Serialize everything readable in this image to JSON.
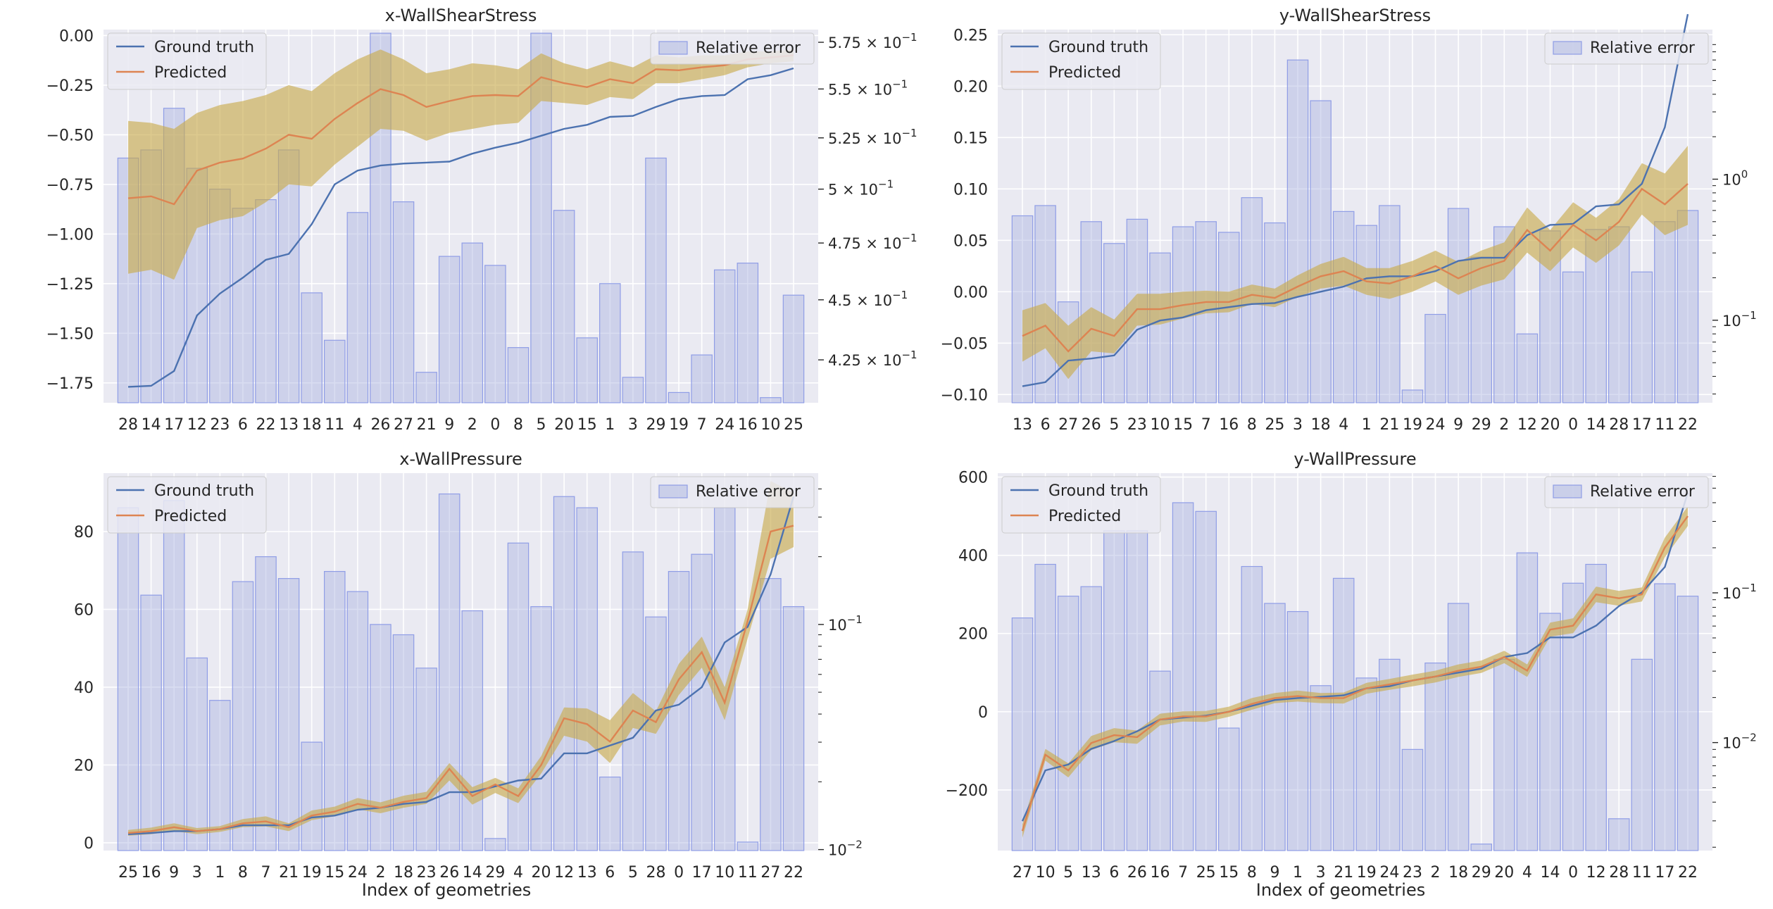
{
  "figure": {
    "xlabel": "Index of geometries"
  },
  "legend_labels": {
    "ground_truth": "Ground truth",
    "predicted": "Predicted",
    "relative_error": "Relative error"
  },
  "colors": {
    "ground_truth": "#4c72b0",
    "predicted": "#dd8452",
    "band": "#c8a949",
    "bars": "#aab4e0",
    "bar_edge": "#8f9de6",
    "panel_bg": "#eaeaf2"
  },
  "chart_data": [
    {
      "type": "bar",
      "title": "x-WallShearStress",
      "xlabel": "",
      "categories": [
        "28",
        "14",
        "17",
        "12",
        "23",
        "6",
        "22",
        "13",
        "18",
        "11",
        "4",
        "26",
        "27",
        "21",
        "9",
        "2",
        "0",
        "8",
        "5",
        "20",
        "15",
        "1",
        "3",
        "29",
        "19",
        "7",
        "24",
        "16",
        "10",
        "25"
      ],
      "ylim": [
        -1.85,
        0.03
      ],
      "yticks": [
        -1.75,
        -1.5,
        -1.25,
        -1.0,
        -0.75,
        -0.5,
        -0.25,
        0.0
      ],
      "ytick_labels": [
        "−1.75",
        "−1.50",
        "−1.25",
        "−1.00",
        "−0.75",
        "−0.50",
        "−0.25",
        "0.00"
      ],
      "y2_scale": "log",
      "y2lim": [
        0.408,
        0.582
      ],
      "y2_ticks": [
        0.425,
        0.45,
        0.475,
        0.5,
        0.525,
        0.55,
        0.575
      ],
      "y2_tick_labels": [
        {
          "mantissa": "4.25 × 10",
          "exp": "−1"
        },
        {
          "mantissa": "4.5 × 10",
          "exp": "−1"
        },
        {
          "mantissa": "4.75 × 10",
          "exp": "−1"
        },
        {
          "mantissa": "5 × 10",
          "exp": "−1"
        },
        {
          "mantissa": "5.25 × 10",
          "exp": "−1"
        },
        {
          "mantissa": "5.5 × 10",
          "exp": "−1"
        },
        {
          "mantissa": "5.75 × 10",
          "exp": "−1"
        }
      ],
      "series": [
        {
          "name": "Ground truth",
          "values": [
            -1.77,
            -1.765,
            -1.69,
            -1.41,
            -1.3,
            -1.22,
            -1.13,
            -1.1,
            -0.95,
            -0.75,
            -0.68,
            -0.655,
            -0.645,
            -0.64,
            -0.635,
            -0.595,
            -0.565,
            -0.54,
            -0.505,
            -0.47,
            -0.45,
            -0.41,
            -0.405,
            -0.36,
            -0.32,
            -0.305,
            -0.3,
            -0.22,
            -0.2,
            -0.165
          ]
        },
        {
          "name": "Predicted",
          "values": [
            -0.82,
            -0.81,
            -0.85,
            -0.68,
            -0.64,
            -0.62,
            -0.57,
            -0.5,
            -0.52,
            -0.42,
            -0.34,
            -0.27,
            -0.3,
            -0.36,
            -0.33,
            -0.305,
            -0.3,
            -0.305,
            -0.21,
            -0.24,
            -0.26,
            -0.22,
            -0.24,
            -0.17,
            -0.175,
            -0.16,
            -0.15,
            -0.12,
            -0.11,
            -0.1
          ]
        },
        {
          "name": "Relative error",
          "values": [
            0.515,
            0.519,
            0.54,
            0.51,
            0.5,
            0.491,
            0.495,
            0.519,
            0.453,
            0.433,
            0.489,
            0.58,
            0.494,
            0.42,
            0.469,
            0.475,
            0.465,
            0.43,
            0.58,
            0.49,
            0.434,
            0.457,
            0.418,
            0.515,
            0.412,
            0.427,
            0.463,
            0.466,
            0.41,
            0.452
          ]
        }
      ],
      "band_lower": [
        -1.2,
        -1.18,
        -1.23,
        -0.97,
        -0.93,
        -0.91,
        -0.84,
        -0.75,
        -0.76,
        -0.65,
        -0.56,
        -0.47,
        -0.48,
        -0.53,
        -0.49,
        -0.47,
        -0.45,
        -0.44,
        -0.33,
        -0.34,
        -0.35,
        -0.31,
        -0.32,
        -0.24,
        -0.24,
        -0.22,
        -0.2,
        -0.16,
        -0.14,
        -0.13
      ],
      "band_upper": [
        -0.43,
        -0.44,
        -0.47,
        -0.39,
        -0.35,
        -0.33,
        -0.3,
        -0.25,
        -0.28,
        -0.19,
        -0.12,
        -0.07,
        -0.12,
        -0.19,
        -0.17,
        -0.14,
        -0.15,
        -0.17,
        -0.09,
        -0.14,
        -0.17,
        -0.13,
        -0.16,
        -0.1,
        -0.11,
        -0.1,
        -0.1,
        -0.08,
        -0.08,
        -0.07
      ]
    },
    {
      "type": "bar",
      "title": "y-WallShearStress",
      "xlabel": "",
      "categories": [
        "13",
        "6",
        "27",
        "26",
        "5",
        "23",
        "10",
        "15",
        "7",
        "16",
        "8",
        "25",
        "3",
        "18",
        "4",
        "1",
        "21",
        "19",
        "24",
        "9",
        "29",
        "2",
        "12",
        "20",
        "0",
        "14",
        "28",
        "17",
        "11",
        "22"
      ],
      "ylim": [
        -0.108,
        0.255
      ],
      "yticks": [
        -0.1,
        -0.05,
        0.0,
        0.05,
        0.1,
        0.15,
        0.2,
        0.25
      ],
      "ytick_labels": [
        "−0.10",
        "−0.05",
        "0.00",
        "0.05",
        "0.10",
        "0.15",
        "0.20",
        "0.25"
      ],
      "y2_scale": "log",
      "y2lim": [
        0.026,
        11.5
      ],
      "y2_ticks": [
        0.1,
        1.0
      ],
      "y2_tick_labels": [
        {
          "mantissa": "10",
          "exp": "−1"
        },
        {
          "mantissa": "10",
          "exp": "0"
        }
      ],
      "series": [
        {
          "name": "Ground truth",
          "values": [
            -0.092,
            -0.088,
            -0.067,
            -0.065,
            -0.062,
            -0.037,
            -0.028,
            -0.025,
            -0.018,
            -0.015,
            -0.012,
            -0.011,
            -0.005,
            0.0,
            0.005,
            0.013,
            0.015,
            0.015,
            0.02,
            0.03,
            0.033,
            0.033,
            0.055,
            0.065,
            0.066,
            0.083,
            0.085,
            0.105,
            0.16,
            0.27
          ]
        },
        {
          "name": "Predicted",
          "values": [
            -0.043,
            -0.033,
            -0.058,
            -0.036,
            -0.043,
            -0.017,
            -0.017,
            -0.013,
            -0.01,
            -0.01,
            -0.003,
            -0.006,
            0.005,
            0.015,
            0.02,
            0.01,
            0.008,
            0.015,
            0.025,
            0.013,
            0.023,
            0.03,
            0.06,
            0.04,
            0.065,
            0.05,
            0.068,
            0.1,
            0.085,
            0.105
          ]
        },
        {
          "name": "Relative error",
          "values": [
            0.55,
            0.65,
            0.135,
            0.5,
            0.35,
            0.52,
            0.3,
            0.46,
            0.5,
            0.42,
            0.74,
            0.49,
            7.0,
            3.6,
            0.59,
            0.47,
            0.65,
            0.032,
            0.11,
            0.62,
            0.28,
            0.46,
            0.08,
            0.43,
            0.22,
            0.44,
            0.46,
            0.22,
            0.5,
            0.6
          ]
        }
      ],
      "band_lower": [
        -0.068,
        -0.055,
        -0.085,
        -0.058,
        -0.06,
        -0.033,
        -0.032,
        -0.026,
        -0.021,
        -0.02,
        -0.012,
        -0.015,
        -0.005,
        0.003,
        0.006,
        -0.003,
        -0.007,
        0.0,
        0.01,
        -0.003,
        0.006,
        0.012,
        0.038,
        0.02,
        0.043,
        0.028,
        0.045,
        0.075,
        0.055,
        0.065
      ],
      "band_upper": [
        -0.018,
        -0.011,
        -0.033,
        -0.015,
        -0.027,
        -0.002,
        -0.002,
        0.0,
        0.001,
        0.0,
        0.007,
        0.003,
        0.016,
        0.027,
        0.034,
        0.023,
        0.023,
        0.03,
        0.04,
        0.029,
        0.04,
        0.048,
        0.082,
        0.06,
        0.087,
        0.072,
        0.09,
        0.125,
        0.115,
        0.142
      ]
    },
    {
      "type": "bar",
      "title": "x-WallPressure",
      "xlabel": "Index of geometries",
      "categories": [
        "25",
        "16",
        "9",
        "3",
        "1",
        "8",
        "7",
        "21",
        "19",
        "15",
        "24",
        "2",
        "18",
        "23",
        "26",
        "14",
        "29",
        "4",
        "20",
        "12",
        "13",
        "6",
        "5",
        "28",
        "0",
        "17",
        "10",
        "11",
        "27",
        "22"
      ],
      "ylim": [
        -2.0,
        95.0
      ],
      "yticks": [
        0,
        20,
        40,
        60,
        80
      ],
      "ytick_labels": [
        "0",
        "20",
        "40",
        "60",
        "80"
      ],
      "y2_scale": "log",
      "y2lim": [
        0.0099,
        0.47
      ],
      "y2_ticks": [
        0.01,
        0.1
      ],
      "y2_tick_labels": [
        {
          "mantissa": "10",
          "exp": "−2"
        },
        {
          "mantissa": "10",
          "exp": "−1"
        }
      ],
      "series": [
        {
          "name": "Ground truth",
          "values": [
            2.2,
            2.5,
            3.0,
            3.0,
            3.5,
            4.5,
            4.5,
            4.5,
            6.5,
            7.0,
            8.5,
            9.0,
            10.0,
            10.5,
            13.0,
            13.0,
            14.5,
            16.0,
            16.5,
            23.0,
            23.0,
            25.0,
            27.0,
            34.0,
            35.5,
            40.0,
            51.5,
            55.5,
            69.0,
            89.0
          ]
        },
        {
          "name": "Predicted",
          "values": [
            2.5,
            3.0,
            4.0,
            3.0,
            3.5,
            5.0,
            5.5,
            4.0,
            7.0,
            8.0,
            10.0,
            9.0,
            10.5,
            11.5,
            19.0,
            12.0,
            15.0,
            12.0,
            20.0,
            32.0,
            30.5,
            26.0,
            34.0,
            31.0,
            42.0,
            49.0,
            36.0,
            57.0,
            80.0,
            81.5
          ]
        },
        {
          "name": "Relative error",
          "values": [
            0.33,
            0.135,
            0.355,
            0.071,
            0.046,
            0.155,
            0.2,
            0.16,
            0.03,
            0.172,
            0.14,
            0.1,
            0.09,
            0.064,
            0.38,
            0.115,
            0.0112,
            0.23,
            0.12,
            0.37,
            0.33,
            0.021,
            0.21,
            0.108,
            0.172,
            0.205,
            0.33,
            0.0108,
            0.16,
            0.12
          ]
        }
      ],
      "band_lower": [
        1.8,
        2.2,
        3.0,
        2.2,
        2.8,
        4.0,
        4.2,
        3.0,
        5.8,
        6.8,
        8.6,
        7.6,
        9.0,
        10.0,
        16.0,
        9.8,
        12.8,
        10.2,
        17.8,
        27.5,
        26.0,
        20.5,
        29.5,
        28.0,
        38.0,
        45.0,
        31.5,
        52.5,
        73.0,
        76.0
      ],
      "band_upper": [
        3.3,
        3.9,
        5.0,
        3.8,
        4.3,
        6.1,
        6.8,
        5.0,
        8.3,
        9.3,
        11.5,
        10.4,
        12.1,
        13.1,
        20.5,
        14.3,
        16.7,
        14.0,
        22.3,
        34.8,
        34.5,
        31.5,
        38.5,
        33.8,
        46.0,
        53.0,
        40.0,
        60.0,
        93.0,
        90.0
      ]
    },
    {
      "type": "bar",
      "title": "y-WallPressure",
      "xlabel": "Index of geometries",
      "categories": [
        "27",
        "10",
        "5",
        "13",
        "6",
        "26",
        "16",
        "7",
        "25",
        "15",
        "8",
        "9",
        "1",
        "3",
        "21",
        "19",
        "24",
        "23",
        "2",
        "18",
        "29",
        "20",
        "4",
        "14",
        "0",
        "12",
        "28",
        "11",
        "17",
        "22"
      ],
      "ylim": [
        -355.0,
        610.0
      ],
      "yticks": [
        -200,
        0,
        200,
        400,
        600
      ],
      "ytick_labels": [
        "−200",
        "0",
        "200",
        "400",
        "600"
      ],
      "y2_scale": "log",
      "y2lim": [
        0.0019,
        0.63
      ],
      "y2_ticks": [
        0.01,
        0.1
      ],
      "y2_tick_labels": [
        {
          "mantissa": "10",
          "exp": "−2"
        },
        {
          "mantissa": "10",
          "exp": "−1"
        }
      ],
      "series": [
        {
          "name": "Ground truth",
          "values": [
            -280,
            -150,
            -135,
            -95,
            -75,
            -50,
            -20,
            -15,
            -10,
            0,
            15,
            30,
            35,
            38,
            42,
            60,
            65,
            80,
            90,
            100,
            110,
            140,
            150,
            190,
            190,
            220,
            270,
            305,
            370,
            560
          ]
        },
        {
          "name": "Predicted",
          "values": [
            -305,
            -110,
            -150,
            -80,
            -60,
            -65,
            -20,
            -12,
            -12,
            0,
            20,
            35,
            40,
            35,
            35,
            60,
            70,
            80,
            90,
            105,
            115,
            140,
            105,
            210,
            220,
            300,
            290,
            300,
            420,
            500
          ]
        },
        {
          "name": "Relative error",
          "values": [
            0.068,
            0.155,
            0.095,
            0.11,
            0.26,
            0.26,
            0.03,
            0.4,
            0.35,
            0.0125,
            0.15,
            0.085,
            0.075,
            0.024,
            0.125,
            0.027,
            0.036,
            0.009,
            0.034,
            0.085,
            0.0021,
            0.036,
            0.185,
            0.073,
            0.116,
            0.155,
            0.0031,
            0.036,
            0.115,
            0.095
          ]
        }
      ],
      "band_lower": [
        -322,
        -125,
        -168,
        -98,
        -78,
        -82,
        -35,
        -25,
        -26,
        -13,
        5,
        22,
        26,
        22,
        21,
        46,
        56,
        65,
        75,
        89,
        99,
        124,
        89,
        192,
        201,
        280,
        271,
        282,
        395,
        475
      ],
      "band_upper": [
        -288,
        -95,
        -132,
        -62,
        -42,
        -48,
        -5,
        1,
        2,
        13,
        35,
        48,
        54,
        48,
        49,
        74,
        84,
        95,
        105,
        121,
        131,
        156,
        121,
        228,
        239,
        320,
        309,
        318,
        445,
        525
      ]
    }
  ]
}
